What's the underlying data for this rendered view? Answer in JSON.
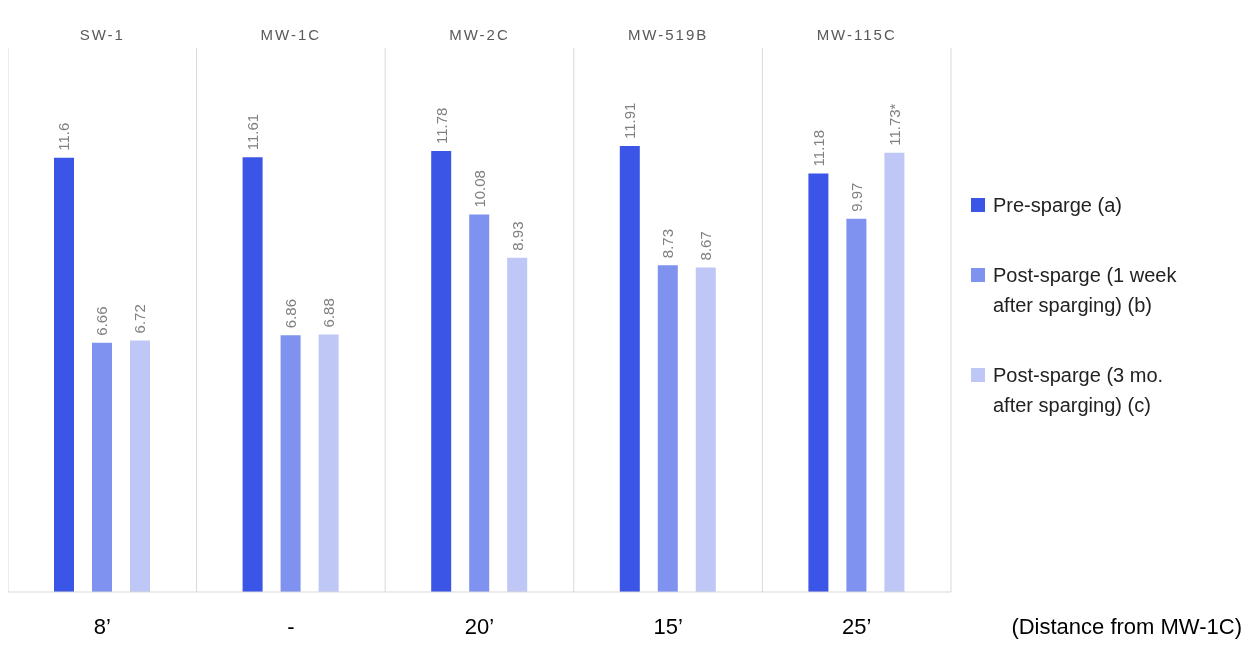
{
  "chart_data": {
    "type": "bar",
    "categories": [
      "SW-1",
      "MW-1C",
      "MW-2C",
      "MW-519B",
      "MW-115C"
    ],
    "series": [
      {
        "name": "Pre-sparge (a)",
        "color": "#3b55e6",
        "values": [
          11.6,
          11.61,
          11.78,
          11.91,
          11.18
        ],
        "value_labels": [
          "11.6",
          "11.61",
          "11.78",
          "11.91",
          "11.18"
        ]
      },
      {
        "name": "Post-sparge (1 week after sparging) (b)",
        "color": "#7f92ef",
        "values": [
          6.66,
          6.86,
          10.08,
          8.73,
          9.97
        ],
        "value_labels": [
          "6.66",
          "6.86",
          "10.08",
          "8.73",
          "9.97"
        ]
      },
      {
        "name": "Post-sparge (3 mo. after sparging) (c)",
        "color": "#bfc7f6",
        "values": [
          6.72,
          6.88,
          8.93,
          8.67,
          11.73
        ],
        "value_labels": [
          "6.72",
          "6.88",
          "8.93",
          "8.67",
          "11.73*"
        ]
      }
    ],
    "annotations": [
      "8’",
      "-",
      "20’",
      "15’",
      "25’",
      "(Distance from MW-1C)"
    ],
    "grid": "x",
    "legend": "right"
  }
}
